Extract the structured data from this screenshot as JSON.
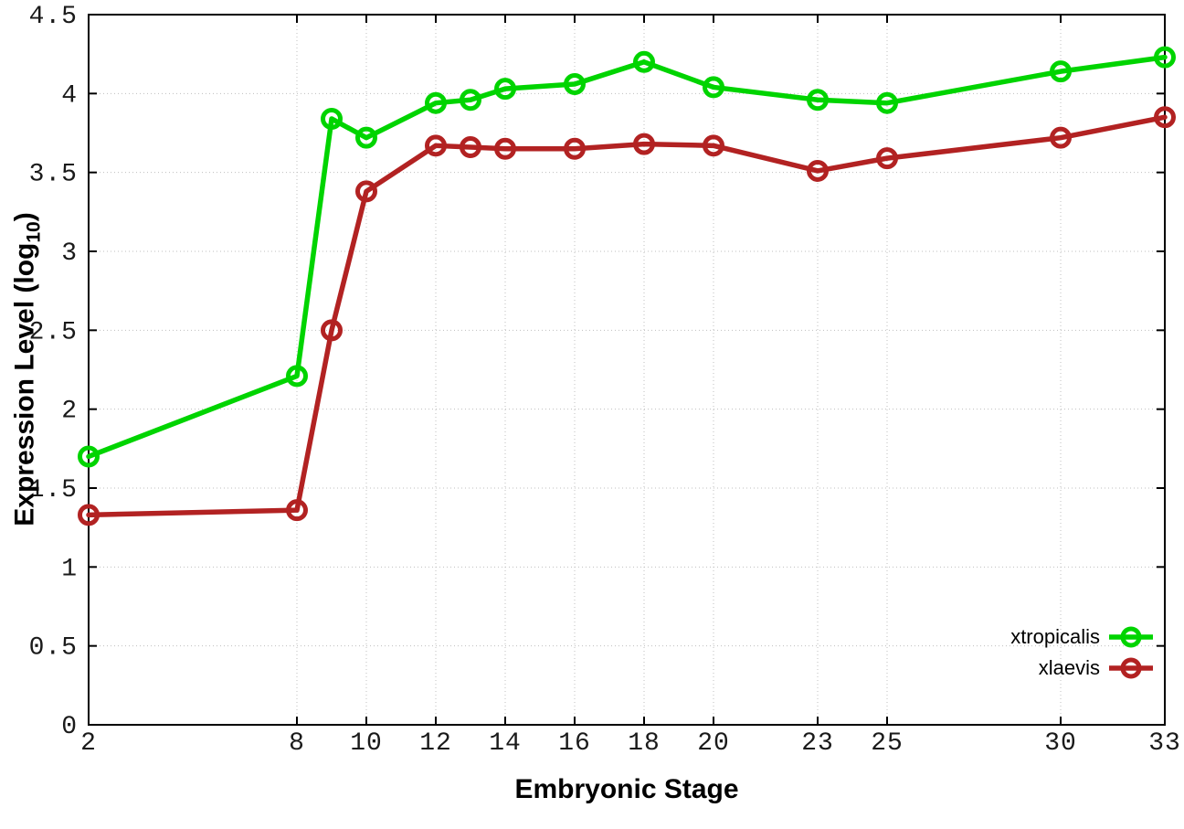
{
  "chart_data": {
    "type": "line",
    "title": "",
    "xlabel": "Embryonic Stage",
    "ylabel": "Expression Level (log10)",
    "ylabel_parts": {
      "main": "Expression Level (log",
      "sub": "10",
      "suffix": ")"
    },
    "xlim": [
      2,
      33
    ],
    "ylim": [
      0,
      4.5
    ],
    "x_ticks": [
      2,
      8,
      10,
      12,
      14,
      16,
      18,
      20,
      23,
      25,
      30,
      33
    ],
    "y_ticks": [
      0,
      0.5,
      1,
      1.5,
      2,
      2.5,
      3,
      3.5,
      4,
      4.5
    ],
    "grid": true,
    "legend_position": "inside-bottom-right",
    "x": [
      2,
      8,
      9,
      10,
      12,
      13,
      14,
      16,
      18,
      20,
      23,
      25,
      30,
      33
    ],
    "series": [
      {
        "name": "xtropicalis",
        "color": "#00d400",
        "marker": "open-circle",
        "values": [
          1.7,
          2.21,
          3.84,
          3.72,
          3.94,
          3.96,
          4.03,
          4.06,
          4.2,
          4.04,
          3.96,
          3.94,
          4.14,
          4.23
        ]
      },
      {
        "name": "xlaevis",
        "color": "#b22222",
        "marker": "open-circle",
        "values": [
          1.33,
          1.36,
          2.5,
          3.38,
          3.67,
          3.66,
          3.65,
          3.65,
          3.68,
          3.67,
          3.51,
          3.59,
          3.72,
          3.85
        ]
      }
    ]
  }
}
